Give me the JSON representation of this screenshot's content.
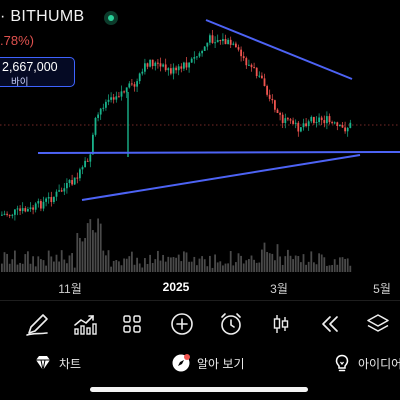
{
  "header": {
    "exchange": "· BITHUMB",
    "change": ".78%)"
  },
  "price_tag": {
    "price": "2,667,000",
    "label": "바이"
  },
  "chart_data": {
    "type": "candlestick",
    "x_ticks": [
      {
        "label": "11월",
        "major": false
      },
      {
        "label": "2025",
        "major": true
      },
      {
        "label": "3월",
        "major": false
      },
      {
        "label": "5월",
        "major": false
      }
    ],
    "up_color": "#19b38b",
    "down_color": "#f0544f",
    "volume_color": "#4a4a4a",
    "trendline_color": "#4d63f5"
  },
  "toolbar": {
    "items": [
      {
        "name": "draw-tool-button",
        "icon": "pen-icon"
      },
      {
        "name": "indicator-button",
        "icon": "indicator-chart-icon"
      },
      {
        "name": "layout-button",
        "icon": "grid-icon"
      },
      {
        "name": "add-button",
        "icon": "plus-circle-icon"
      },
      {
        "name": "alert-button",
        "icon": "alarm-clock-icon"
      },
      {
        "name": "chart-type-button",
        "icon": "candlestick-icon"
      },
      {
        "name": "replay-button",
        "icon": "rewind-icon"
      },
      {
        "name": "layers-button",
        "icon": "layers-icon"
      }
    ]
  },
  "bottom_nav": {
    "chart": "차트",
    "overview": "알아 보기",
    "ideas": "아이디어"
  }
}
